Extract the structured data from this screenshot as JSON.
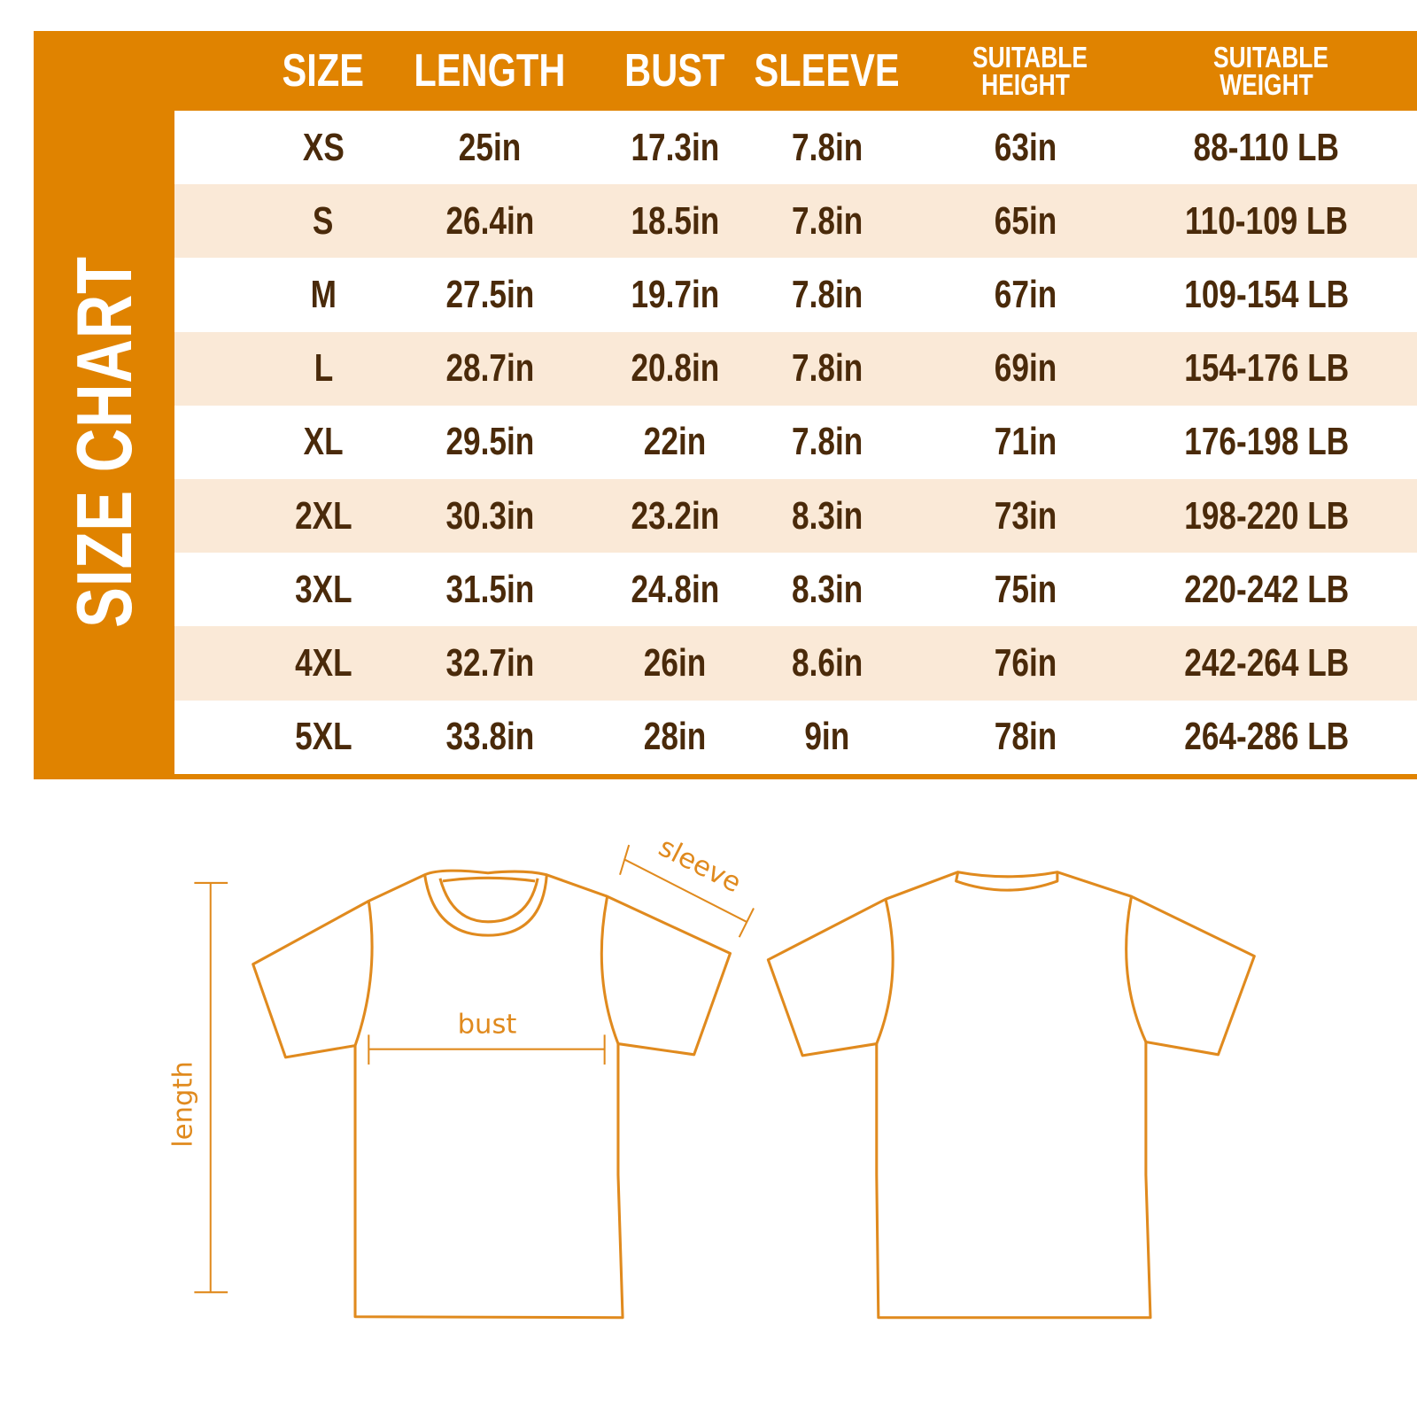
{
  "title": "SIZE CHART",
  "headers": [
    "SIZE",
    "LENGTH",
    "BUST",
    "SLEEVE",
    "SUITABLE HEIGHT",
    "SUITABLE WEIGHT"
  ],
  "rows": [
    [
      "XS",
      "25in",
      "17.3in",
      "7.8in",
      "63in",
      "88-110 LB"
    ],
    [
      "S",
      "26.4in",
      "18.5in",
      "7.8in",
      "65in",
      "110-109 LB"
    ],
    [
      "M",
      "27.5in",
      "19.7in",
      "7.8in",
      "67in",
      "109-154 LB"
    ],
    [
      "L",
      "28.7in",
      "20.8in",
      "7.8in",
      "69in",
      "154-176 LB"
    ],
    [
      "XL",
      "29.5in",
      "22in",
      "7.8in",
      "71in",
      "176-198 LB"
    ],
    [
      "2XL",
      "30.3in",
      "23.2in",
      "8.3in",
      "73in",
      "198-220 LB"
    ],
    [
      "3XL",
      "31.5in",
      "24.8in",
      "8.3in",
      "75in",
      "220-242 LB"
    ],
    [
      "4XL",
      "32.7in",
      "26in",
      "8.6in",
      "76in",
      "242-264 LB"
    ],
    [
      "5XL",
      "33.8in",
      "28in",
      "9in",
      "78in",
      "264-286 LB"
    ]
  ],
  "diagram": {
    "sleeve": "sleeve",
    "bust": "bust",
    "length": "length"
  },
  "colors": {
    "accent": "#E08300",
    "stripe": "#FAE9D7",
    "text": "#4A2A0A",
    "outline": "#E08A1E"
  }
}
